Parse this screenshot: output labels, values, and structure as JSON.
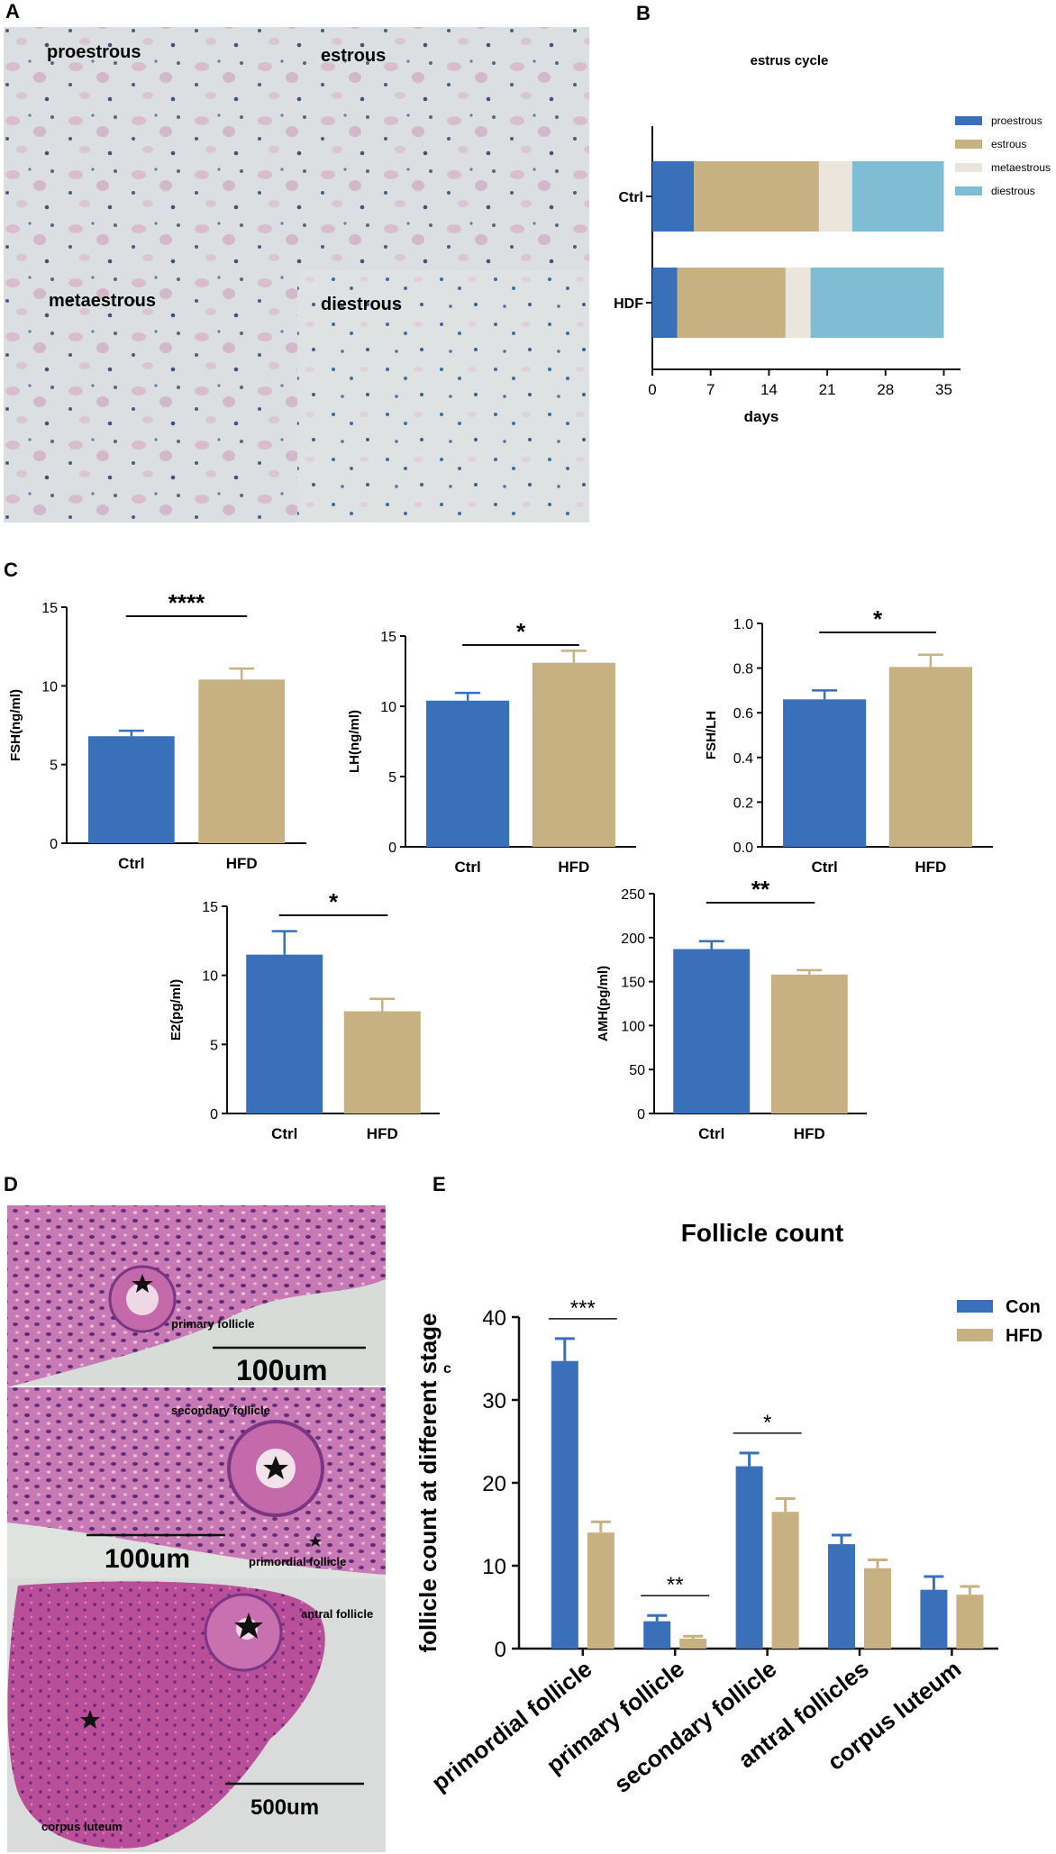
{
  "panels": {
    "A": {
      "letter": "A",
      "labels": [
        "proestrous",
        "estrous",
        "metaestrous",
        "diestrous"
      ]
    },
    "B": {
      "letter": "B",
      "chart_data": {
        "type": "bar",
        "orientation": "horizontal-stacked",
        "title": "estrus cycle",
        "xlabel": "days",
        "xlim": [
          0,
          37
        ],
        "xticks": [
          0,
          7,
          14,
          21,
          28,
          35
        ],
        "categories": [
          "Ctrl",
          "HDF"
        ],
        "series": [
          {
            "name": "proestrous",
            "values": [
              5,
              3
            ],
            "color": "#3a6fba"
          },
          {
            "name": "estrous",
            "values": [
              15,
              13
            ],
            "color": "#c7b182"
          },
          {
            "name": "metaestrous",
            "values": [
              4,
              3
            ],
            "color": "#ebe5db"
          },
          {
            "name": "diestrous",
            "values": [
              11,
              16
            ],
            "color": "#7fbdd4"
          }
        ],
        "legend": "right"
      }
    },
    "C": {
      "letter": "C",
      "charts": [
        {
          "type": "bar",
          "ylabel": "FSH(ng/ml)",
          "categories": [
            "Ctrl",
            "HFD"
          ],
          "values": [
            6.8,
            10.4
          ],
          "errors": [
            0.35,
            0.7
          ],
          "ylim": [
            0,
            15
          ],
          "yticks": [
            "0",
            "5",
            "10",
            "15"
          ],
          "significance": "****"
        },
        {
          "type": "bar",
          "ylabel": "LH(ng/ml)",
          "categories": [
            "Ctrl",
            "HFD"
          ],
          "values": [
            10.4,
            13.1
          ],
          "errors": [
            0.55,
            0.85
          ],
          "ylim": [
            0,
            15
          ],
          "yticks": [
            "0",
            "5",
            "10",
            "15"
          ],
          "significance": "*"
        },
        {
          "type": "bar",
          "ylabel": "FSH/LH",
          "categories": [
            "Ctrl",
            "HFD"
          ],
          "values": [
            0.66,
            0.805
          ],
          "errors": [
            0.04,
            0.055
          ],
          "ylim": [
            0,
            1.0
          ],
          "yticks": [
            "0.0",
            "0.2",
            "0.4",
            "0.6",
            "0.8",
            "1.0"
          ],
          "significance": "*"
        },
        {
          "type": "bar",
          "ylabel": "E2(pg/ml)",
          "categories": [
            "Ctrl",
            "HFD"
          ],
          "values": [
            11.5,
            7.4
          ],
          "errors": [
            1.7,
            0.9
          ],
          "ylim": [
            0,
            15
          ],
          "yticks": [
            "0",
            "5",
            "10",
            "15"
          ],
          "significance": "*"
        },
        {
          "type": "bar",
          "ylabel": "AMH(pg/ml)",
          "categories": [
            "Ctrl",
            "HFD"
          ],
          "values": [
            187,
            158
          ],
          "errors": [
            9,
            5
          ],
          "ylim": [
            0,
            250
          ],
          "yticks": [
            "0",
            "50",
            "100",
            "150",
            "200",
            "250"
          ],
          "significance": "**"
        }
      ]
    },
    "D": {
      "letter": "D",
      "labels": {
        "primary": "primary follicle",
        "scale1": "100um",
        "secondary": "secondary follicle",
        "scale2": "100um",
        "primordial": "primordial follicle",
        "antral": "antral follicle",
        "corpus": "corpus luteum",
        "scale3": "500um"
      }
    },
    "E": {
      "letter": "E",
      "chart_data": {
        "type": "bar",
        "title": "Follicle count",
        "ylabel": "follicle count at different stage",
        "ylabel_suffix": "c",
        "categories": [
          "primordial follicle",
          "primary follicle",
          "secondary follicle",
          "antral follicles",
          "corpus luteum"
        ],
        "series": [
          {
            "name": "Con",
            "values": [
              34.7,
              3.3,
              22.0,
              12.6,
              7.1
            ],
            "errors": [
              2.7,
              0.7,
              1.6,
              1.1,
              1.6
            ],
            "color": "#3a6fba"
          },
          {
            "name": "HFD",
            "values": [
              14.0,
              1.2,
              16.5,
              9.7,
              6.5
            ],
            "errors": [
              1.3,
              0.3,
              1.6,
              1.0,
              1.0
            ],
            "color": "#c7b182"
          }
        ],
        "ylim": [
          0,
          40
        ],
        "yticks": [
          "0",
          "10",
          "20",
          "30",
          "40"
        ],
        "significance": [
          {
            "from": 0,
            "label": "***"
          },
          {
            "from": 1,
            "label": "**"
          },
          {
            "from": 2,
            "label": "*"
          }
        ],
        "legend": "top-right"
      }
    }
  }
}
